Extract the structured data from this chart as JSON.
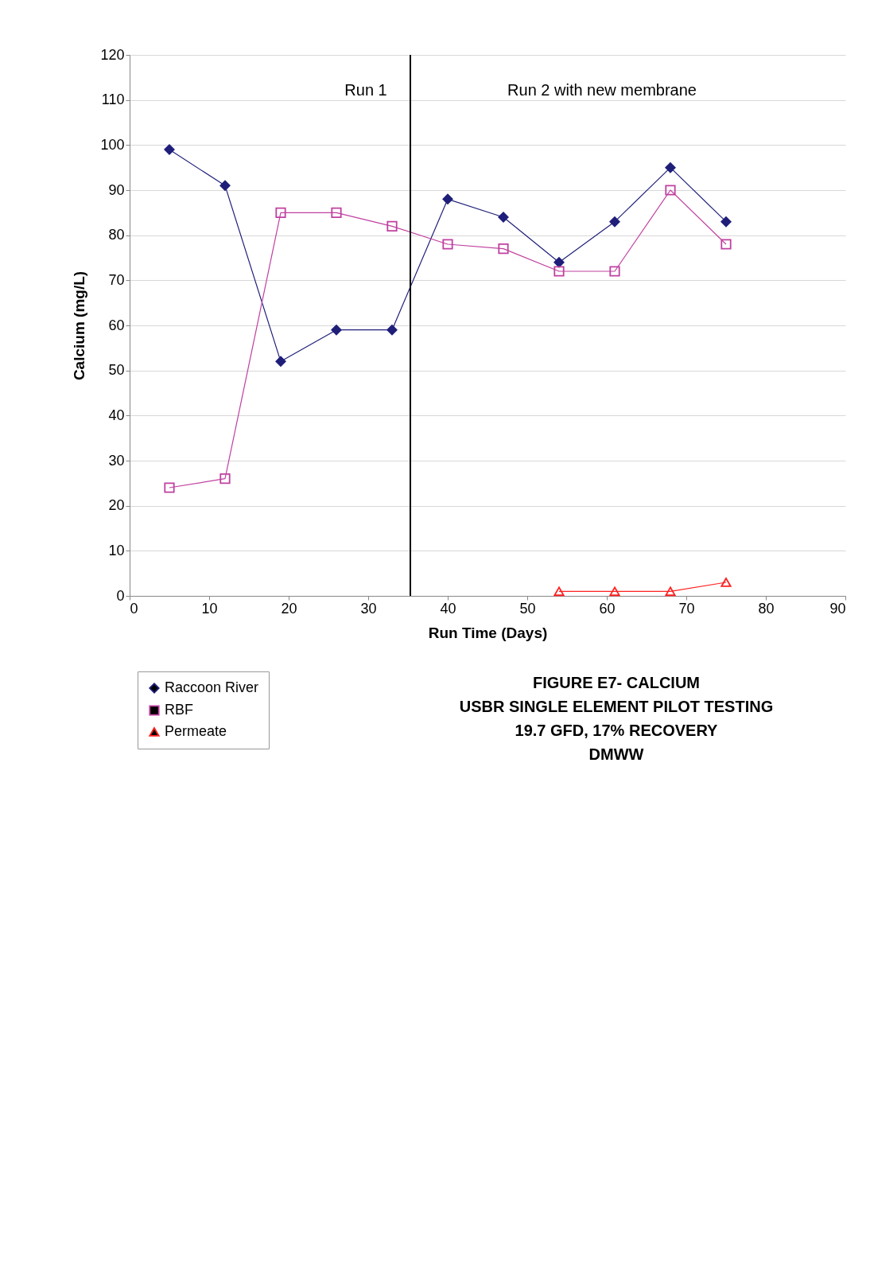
{
  "chart_data": {
    "type": "line",
    "title": [
      "FIGURE E7- CALCIUM",
      "USBR SINGLE ELEMENT PILOT TESTING",
      "19.7 GFD, 17% RECOVERY",
      "DMWW"
    ],
    "xlabel": "Run Time (Days)",
    "ylabel": "Calcium (mg/L)",
    "x": [
      5,
      12,
      19,
      26,
      33,
      40,
      47,
      54,
      61,
      68,
      75
    ],
    "series": [
      {
        "name": "Raccoon River",
        "color": "#1f1f7a",
        "marker": "diamond",
        "values": [
          99,
          91,
          52,
          59,
          59,
          88,
          84,
          74,
          83,
          95,
          83
        ]
      },
      {
        "name": "RBF",
        "color": "#c040a0",
        "marker": "square",
        "values": [
          24,
          26,
          85,
          85,
          82,
          78,
          77,
          72,
          72,
          90,
          78
        ]
      },
      {
        "name": "Permeate",
        "color": "#ff2020",
        "marker": "triangle",
        "x": [
          54,
          61,
          68,
          75
        ],
        "values": [
          1,
          1,
          1,
          3
        ]
      }
    ],
    "xlim": [
      0,
      90
    ],
    "xticks": [
      0,
      10,
      20,
      30,
      40,
      50,
      60,
      70,
      80,
      90
    ],
    "ylim": [
      0,
      120
    ],
    "yticks": [
      0,
      10,
      20,
      30,
      40,
      50,
      60,
      70,
      80,
      90,
      100,
      110,
      120
    ],
    "grid": "y",
    "legend": "bottom left",
    "ref_lines": [
      {
        "axis": "x",
        "value": 35.3,
        "color": "#000000"
      }
    ],
    "annotations": [
      "Run 1",
      "Run 2 with new membrane"
    ]
  }
}
